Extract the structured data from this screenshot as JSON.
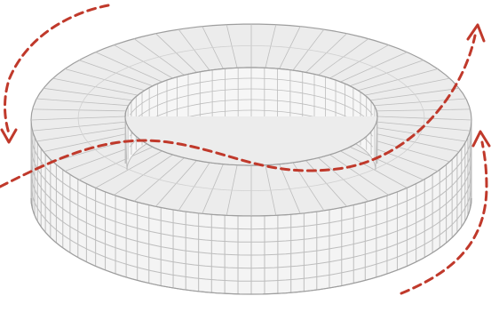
{
  "diagram": {
    "subject": "ring-shaped-timber-frame-building",
    "colors": {
      "background": "#ffffff",
      "roof_fill": "#ececec",
      "roof_shade": "#e2e2e2",
      "frame_line": "#bdbdbd",
      "frame_dark": "#9e9e9e",
      "arrow": "#c0392b"
    },
    "arrows": [
      {
        "id": "arrow-top-left",
        "direction": "counter-clockwise-down"
      },
      {
        "id": "arrow-through-courtyard",
        "direction": "up-right"
      },
      {
        "id": "arrow-bottom-right",
        "direction": "up"
      }
    ]
  }
}
